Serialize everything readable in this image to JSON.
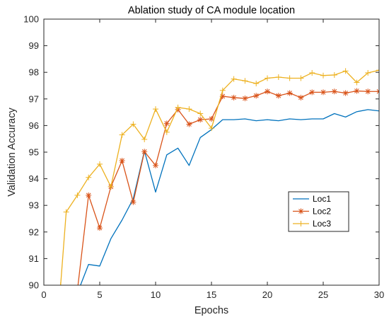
{
  "chart_data": {
    "type": "line",
    "title": "Ablation study of CA module location",
    "xlabel": "Epochs",
    "ylabel": "Validation Accuracy",
    "xlim": [
      0,
      30
    ],
    "ylim": [
      90,
      100
    ],
    "xticks": [
      0,
      5,
      10,
      15,
      20,
      25,
      30
    ],
    "yticks": [
      90,
      91,
      92,
      93,
      94,
      95,
      96,
      97,
      98,
      99,
      100
    ],
    "grid": false,
    "legend_position": "bottom-right",
    "series": [
      {
        "name": "Loc1",
        "color": "#0072BD",
        "marker": "none",
        "x": [
          3,
          4,
          5,
          6,
          7,
          8,
          9,
          10,
          11,
          12,
          13,
          14,
          15,
          16,
          17,
          18,
          19,
          20,
          21,
          22,
          23,
          24,
          25,
          26,
          27,
          28,
          29,
          30
        ],
        "y": [
          89.7,
          90.78,
          90.72,
          91.75,
          92.45,
          93.25,
          95.05,
          93.5,
          94.9,
          95.15,
          94.5,
          95.55,
          95.85,
          96.22,
          96.22,
          96.25,
          96.18,
          96.22,
          96.18,
          96.25,
          96.22,
          96.25,
          96.25,
          96.45,
          96.32,
          96.52,
          96.6,
          96.55
        ]
      },
      {
        "name": "Loc2",
        "color": "#D95319",
        "marker": "asterisk",
        "x": [
          3,
          4,
          5,
          6,
          7,
          8,
          9,
          10,
          11,
          12,
          13,
          14,
          15,
          16,
          17,
          18,
          19,
          20,
          21,
          22,
          23,
          24,
          25,
          26,
          27,
          28,
          29,
          30
        ],
        "y": [
          89.8,
          93.38,
          92.15,
          93.7,
          94.68,
          93.12,
          95.02,
          94.5,
          96.08,
          96.6,
          96.05,
          96.22,
          96.25,
          97.1,
          97.05,
          97.02,
          97.12,
          97.28,
          97.12,
          97.22,
          97.05,
          97.25,
          97.25,
          97.28,
          97.22,
          97.3,
          97.28,
          97.28
        ]
      },
      {
        "name": "Loc3",
        "color": "#EDB120",
        "marker": "plus",
        "x": [
          1.5,
          2,
          3,
          4,
          5,
          6,
          7,
          8,
          9,
          10,
          11,
          12,
          13,
          14,
          15,
          16,
          17,
          18,
          19,
          20,
          21,
          22,
          23,
          24,
          25,
          26,
          27,
          28,
          29,
          30
        ],
        "y": [
          90.0,
          92.75,
          93.38,
          94.05,
          94.55,
          93.7,
          95.65,
          96.05,
          95.48,
          96.62,
          95.75,
          96.68,
          96.62,
          96.45,
          95.9,
          97.32,
          97.75,
          97.68,
          97.58,
          97.78,
          97.82,
          97.78,
          97.78,
          97.98,
          97.88,
          97.9,
          98.05,
          97.62,
          97.98,
          98.08
        ]
      }
    ]
  }
}
